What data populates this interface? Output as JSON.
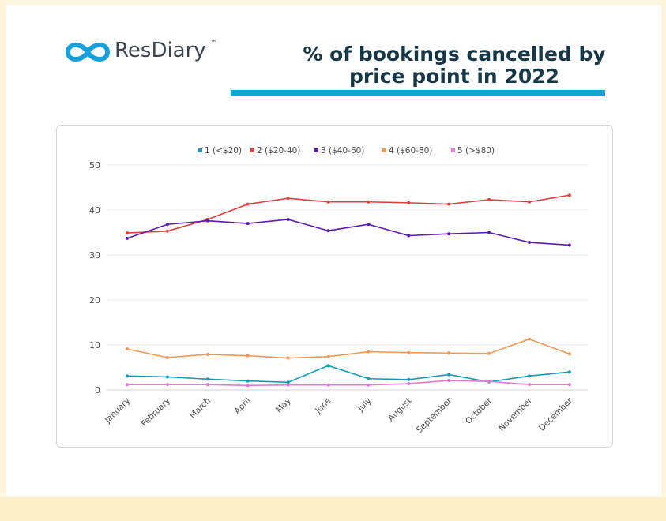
{
  "brand": {
    "name": "ResDiary",
    "tm": "™"
  },
  "header": {
    "title_line1": "% of bookings cancelled by",
    "title_line2": "price point in 2022"
  },
  "colors": {
    "accent": "#16a0dc",
    "title": "#173746",
    "background": "#fdf5de"
  },
  "chart_data": {
    "type": "line",
    "x": [
      "January",
      "February",
      "March",
      "April",
      "May",
      "June",
      "July",
      "August",
      "September",
      "October",
      "November",
      "December"
    ],
    "ylim": [
      0,
      50
    ],
    "yticks": [
      0,
      10,
      20,
      30,
      40,
      50
    ],
    "grid": true,
    "legend_position": "top",
    "series": [
      {
        "name": "1 (<$20)",
        "color": "#1a98b3",
        "values": [
          3.1,
          2.9,
          2.4,
          2.0,
          1.7,
          5.4,
          2.5,
          2.3,
          3.4,
          1.8,
          3.1,
          4.0
        ]
      },
      {
        "name": "2 ($20-40)",
        "color": "#d9423e",
        "values": [
          34.9,
          35.3,
          37.9,
          41.3,
          42.6,
          41.8,
          41.8,
          41.6,
          41.3,
          42.3,
          41.8,
          43.3
        ]
      },
      {
        "name": "3 ($40-60)",
        "color": "#5a1bb0",
        "values": [
          33.7,
          36.8,
          37.6,
          37.0,
          37.9,
          35.4,
          36.8,
          34.3,
          34.7,
          35.0,
          32.8,
          32.2
        ]
      },
      {
        "name": "4 ($60-80)",
        "color": "#ef9a5a",
        "values": [
          9.1,
          7.2,
          7.9,
          7.6,
          7.1,
          7.4,
          8.5,
          8.3,
          8.2,
          8.1,
          11.3,
          8.0
        ]
      },
      {
        "name": "5 (>$80)",
        "color": "#e27ad3",
        "values": [
          1.2,
          1.2,
          1.2,
          1.0,
          1.1,
          1.1,
          1.1,
          1.4,
          2.1,
          1.9,
          1.2,
          1.2
        ]
      }
    ]
  }
}
